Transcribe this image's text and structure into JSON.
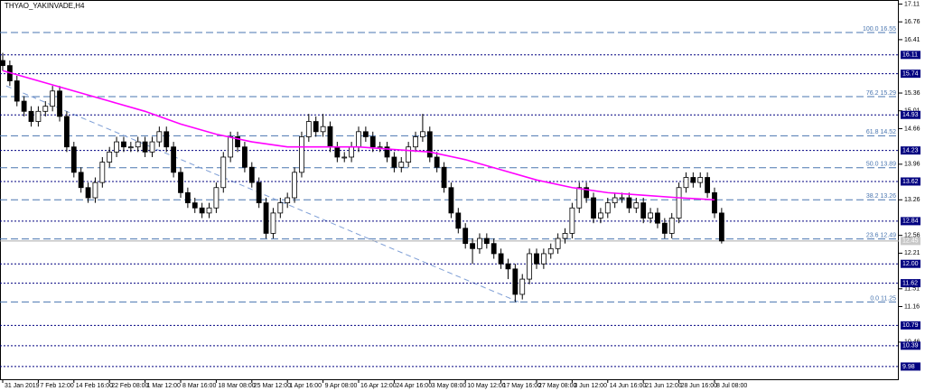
{
  "chart_data": {
    "type": "candlestick",
    "title": "THYAO_YAKINVADE,H4",
    "ylim": [
      9.73,
      17.19
    ],
    "xlim": [
      -0.38,
      125.89
    ],
    "yticks": [
      17.11,
      16.76,
      16.41,
      15.36,
      15.01,
      14.66,
      13.96,
      13.26,
      12.56,
      12.21,
      11.51,
      11.16,
      10.46
    ],
    "xticks": [
      {
        "value": 0,
        "label": "31 Jan 2019"
      },
      {
        "value": 5,
        "label": "7 Feb 12:00"
      },
      {
        "value": 10,
        "label": "14 Feb 16:00"
      },
      {
        "value": 15,
        "label": "22 Feb 08:00"
      },
      {
        "value": 20,
        "label": "1 Mar 12:00"
      },
      {
        "value": 25,
        "label": "8 Mar 16:00"
      },
      {
        "value": 30,
        "label": "18 Mar 08:00"
      },
      {
        "value": 35,
        "label": "25 Mar 12:00"
      },
      {
        "value": 40,
        "label": "1 Apr 16:00"
      },
      {
        "value": 45,
        "label": "9 Apr 08:00"
      },
      {
        "value": 50,
        "label": "16 Apr 12:00"
      },
      {
        "value": 55,
        "label": "24 Apr 16:00"
      },
      {
        "value": 60,
        "label": "3 May 08:00"
      },
      {
        "value": 65,
        "label": "10 May 12:00"
      },
      {
        "value": 70,
        "label": "17 May 16:00"
      },
      {
        "value": 75,
        "label": "27 May 08:00"
      },
      {
        "value": 80,
        "label": "3 Jun 12:00"
      },
      {
        "value": 85,
        "label": "14 Jun 16:00"
      },
      {
        "value": 90,
        "label": "21 Jun 12:00"
      },
      {
        "value": 95,
        "label": "28 Jun 16:00"
      },
      {
        "value": 100,
        "label": "8 Jul 08:00"
      }
    ],
    "open": [
      16.0,
      15.9,
      15.6,
      15.2,
      15.0,
      14.8,
      15.0,
      15.1,
      15.4,
      14.9,
      14.3,
      13.8,
      13.5,
      13.3,
      13.6,
      14.0,
      14.2,
      14.4,
      14.3,
      14.3,
      14.4,
      14.2,
      14.4,
      14.6,
      14.3,
      13.8,
      13.4,
      13.2,
      13.1,
      13.0,
      13.1,
      13.5,
      14.1,
      14.5,
      14.3,
      13.9,
      13.6,
      13.2,
      12.6,
      13.0,
      13.2,
      13.3,
      13.8,
      14.5,
      14.8,
      14.6,
      14.7,
      14.3,
      14.1,
      14.1,
      14.3,
      14.6,
      14.5,
      14.3,
      14.3,
      14.1,
      13.9,
      14.0,
      14.3,
      14.5,
      14.6,
      14.1,
      13.9,
      13.5,
      13.0,
      12.7,
      12.4,
      12.3,
      12.5,
      12.4,
      12.2,
      12.0,
      11.9,
      11.4,
      11.7,
      12.2,
      12.0,
      12.2,
      12.3,
      12.5,
      12.6,
      13.1,
      13.5,
      13.3,
      12.9,
      13.0,
      13.2,
      13.3,
      13.3,
      13.1,
      13.2,
      12.9,
      13.0,
      12.8,
      12.6,
      12.9,
      13.5,
      13.7,
      13.6,
      13.7,
      13.4,
      13.0
    ],
    "high": [
      16.15,
      16.0,
      15.7,
      15.3,
      15.1,
      15.1,
      15.2,
      15.5,
      15.5,
      15.0,
      14.4,
      13.9,
      13.6,
      13.7,
      14.1,
      14.3,
      14.5,
      14.5,
      14.4,
      14.5,
      14.5,
      14.5,
      14.7,
      14.7,
      14.4,
      13.9,
      13.5,
      13.3,
      13.2,
      13.2,
      13.6,
      14.2,
      14.6,
      14.6,
      14.4,
      14.0,
      13.7,
      13.3,
      13.1,
      13.3,
      13.4,
      13.9,
      14.6,
      14.95,
      14.9,
      14.95,
      14.8,
      14.4,
      14.2,
      14.4,
      14.7,
      14.7,
      14.6,
      14.4,
      14.4,
      14.2,
      14.1,
      14.4,
      14.6,
      14.95,
      14.7,
      14.2,
      14.0,
      13.6,
      13.1,
      12.8,
      12.5,
      12.6,
      12.6,
      12.5,
      12.3,
      12.1,
      12.0,
      11.8,
      12.3,
      12.3,
      12.3,
      12.4,
      12.6,
      12.7,
      13.2,
      13.6,
      13.6,
      13.4,
      13.1,
      13.3,
      13.4,
      13.4,
      13.4,
      13.3,
      13.3,
      13.1,
      13.1,
      12.9,
      13.0,
      13.6,
      13.8,
      13.8,
      13.8,
      13.8,
      13.5,
      13.1
    ],
    "low": [
      15.8,
      15.5,
      15.1,
      14.9,
      14.7,
      14.7,
      14.9,
      15.0,
      14.8,
      14.2,
      13.7,
      13.4,
      13.2,
      13.2,
      13.5,
      13.9,
      14.1,
      14.2,
      14.2,
      14.2,
      14.1,
      14.1,
      14.3,
      14.2,
      13.7,
      13.3,
      13.1,
      13.0,
      12.9,
      12.9,
      13.0,
      13.4,
      14.0,
      14.2,
      13.8,
      13.5,
      13.1,
      12.5,
      12.5,
      12.9,
      13.1,
      13.2,
      13.7,
      14.4,
      14.5,
      14.5,
      14.2,
      14.0,
      14.0,
      14.0,
      14.2,
      14.4,
      14.2,
      14.2,
      14.0,
      13.8,
      13.8,
      13.9,
      14.2,
      14.4,
      14.0,
      13.8,
      13.4,
      12.9,
      12.6,
      12.3,
      12.0,
      12.2,
      12.3,
      12.1,
      11.9,
      11.7,
      11.25,
      11.3,
      11.6,
      11.9,
      11.9,
      12.1,
      12.2,
      12.4,
      12.5,
      13.0,
      13.2,
      12.8,
      12.8,
      12.9,
      13.1,
      13.2,
      13.0,
      13.0,
      12.8,
      12.8,
      12.7,
      12.5,
      12.5,
      12.8,
      13.4,
      13.5,
      13.5,
      13.3,
      12.9,
      12.4
    ],
    "close": [
      15.9,
      15.6,
      15.2,
      15.0,
      14.8,
      15.0,
      15.1,
      15.4,
      14.9,
      14.3,
      13.8,
      13.5,
      13.3,
      13.6,
      14.0,
      14.2,
      14.4,
      14.3,
      14.3,
      14.4,
      14.2,
      14.4,
      14.6,
      14.3,
      13.8,
      13.4,
      13.2,
      13.1,
      13.0,
      13.1,
      13.5,
      14.1,
      14.5,
      14.3,
      13.9,
      13.6,
      13.2,
      12.6,
      13.0,
      13.2,
      13.3,
      13.8,
      14.5,
      14.8,
      14.6,
      14.7,
      14.3,
      14.1,
      14.1,
      14.3,
      14.6,
      14.5,
      14.3,
      14.3,
      14.1,
      13.9,
      14.0,
      14.3,
      14.5,
      14.6,
      14.1,
      13.9,
      13.5,
      13.0,
      12.7,
      12.4,
      12.3,
      12.5,
      12.4,
      12.2,
      12.0,
      11.9,
      11.4,
      11.7,
      12.2,
      12.0,
      12.2,
      12.3,
      12.5,
      12.6,
      13.1,
      13.5,
      13.3,
      12.9,
      13.0,
      13.2,
      13.3,
      13.3,
      13.1,
      13.2,
      12.9,
      13.0,
      12.8,
      12.6,
      12.9,
      13.5,
      13.7,
      13.6,
      13.7,
      13.4,
      13.0,
      12.45
    ],
    "moving_average": {
      "color": "#ff00ff",
      "x": [
        0,
        5,
        10,
        15,
        20,
        25,
        30,
        35,
        40,
        45,
        50,
        55,
        60,
        65,
        70,
        75,
        80,
        85,
        90,
        95,
        100
      ],
      "values": [
        15.8,
        15.6,
        15.4,
        15.2,
        15.0,
        14.75,
        14.55,
        14.4,
        14.3,
        14.3,
        14.3,
        14.25,
        14.2,
        14.05,
        13.85,
        13.65,
        13.5,
        13.4,
        13.35,
        13.3,
        13.26
      ]
    },
    "trendline": {
      "color": "#7f9fd6",
      "x": [
        0.5,
        72.5
      ],
      "values": [
        15.5,
        11.25
      ]
    },
    "fib_color": "#4a76b0",
    "fib_levels": [
      {
        "value": 16.55,
        "label": "100.0 16.55"
      },
      {
        "value": 15.29,
        "label": "76.2 15.29"
      },
      {
        "value": 14.52,
        "label": "61.8 14.52"
      },
      {
        "value": 13.89,
        "label": "50.0 13.89"
      },
      {
        "value": 13.26,
        "label": "38.2 13.26"
      },
      {
        "value": 12.49,
        "label": "23.6 12.49"
      },
      {
        "value": 11.25,
        "label": "0.0 11.25"
      }
    ],
    "level_color": "#000080",
    "levels": [
      16.11,
      15.74,
      14.93,
      14.23,
      13.62,
      12.84,
      {
        "value": 12,
        "label": "12.00"
      },
      11.62,
      10.79,
      10.39,
      9.98
    ],
    "current_price": 12.45
  }
}
